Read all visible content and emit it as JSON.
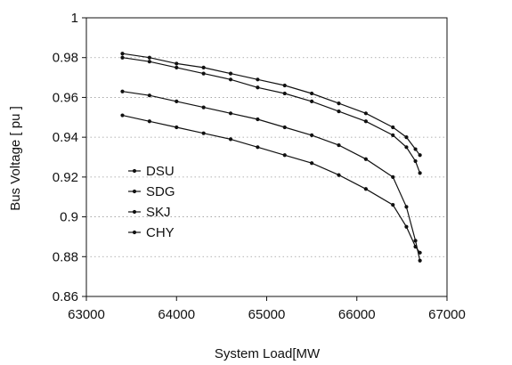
{
  "chart_data": {
    "type": "line",
    "title": "",
    "xlabel": "System Load[MW",
    "ylabel": "Bus Voltage [ pu ]",
    "xlim": [
      63000,
      67000
    ],
    "ylim": [
      0.86,
      1.0
    ],
    "x_ticks": [
      "63000",
      "64000",
      "65000",
      "66000",
      "67000"
    ],
    "y_ticks": [
      "0.86",
      "0.88",
      "0.9",
      "0.92",
      "0.94",
      "0.96",
      "0.98",
      "1"
    ],
    "grid": "horizontal-dotted",
    "legend_position": "lower-left",
    "series": [
      {
        "name": "DSU",
        "points": [
          [
            63400,
            0.982
          ],
          [
            63700,
            0.98
          ],
          [
            64000,
            0.977
          ],
          [
            64300,
            0.975
          ],
          [
            64600,
            0.972
          ],
          [
            64900,
            0.969
          ],
          [
            65200,
            0.966
          ],
          [
            65500,
            0.962
          ],
          [
            65800,
            0.957
          ],
          [
            66100,
            0.952
          ],
          [
            66400,
            0.945
          ],
          [
            66550,
            0.94
          ],
          [
            66650,
            0.934
          ],
          [
            66700,
            0.931
          ]
        ]
      },
      {
        "name": "SDG",
        "points": [
          [
            63400,
            0.98
          ],
          [
            63700,
            0.978
          ],
          [
            64000,
            0.975
          ],
          [
            64300,
            0.972
          ],
          [
            64600,
            0.969
          ],
          [
            64900,
            0.965
          ],
          [
            65200,
            0.962
          ],
          [
            65500,
            0.958
          ],
          [
            65800,
            0.953
          ],
          [
            66100,
            0.948
          ],
          [
            66400,
            0.941
          ],
          [
            66550,
            0.935
          ],
          [
            66650,
            0.928
          ],
          [
            66700,
            0.922
          ]
        ]
      },
      {
        "name": "SKJ",
        "points": [
          [
            63400,
            0.963
          ],
          [
            63700,
            0.961
          ],
          [
            64000,
            0.958
          ],
          [
            64300,
            0.955
          ],
          [
            64600,
            0.952
          ],
          [
            64900,
            0.949
          ],
          [
            65200,
            0.945
          ],
          [
            65500,
            0.941
          ],
          [
            65800,
            0.936
          ],
          [
            66100,
            0.929
          ],
          [
            66400,
            0.92
          ],
          [
            66550,
            0.905
          ],
          [
            66650,
            0.888
          ],
          [
            66700,
            0.878
          ]
        ]
      },
      {
        "name": "CHY",
        "points": [
          [
            63400,
            0.951
          ],
          [
            63700,
            0.948
          ],
          [
            64000,
            0.945
          ],
          [
            64300,
            0.942
          ],
          [
            64600,
            0.939
          ],
          [
            64900,
            0.935
          ],
          [
            65200,
            0.931
          ],
          [
            65500,
            0.927
          ],
          [
            65800,
            0.921
          ],
          [
            66100,
            0.914
          ],
          [
            66400,
            0.906
          ],
          [
            66550,
            0.895
          ],
          [
            66650,
            0.885
          ],
          [
            66700,
            0.882
          ]
        ]
      }
    ],
    "colors": {
      "line": "#111111",
      "grid": "#9a9a9a",
      "axis": "#111111"
    }
  }
}
